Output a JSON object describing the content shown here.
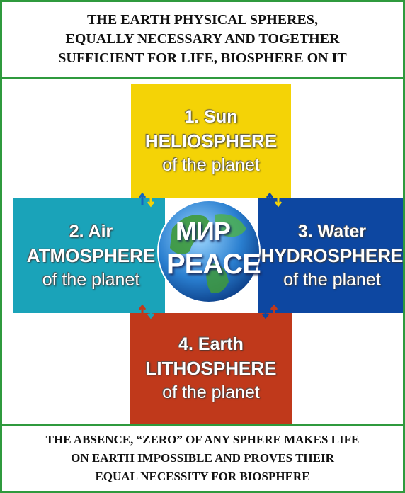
{
  "header": {
    "lines": [
      "THE EARTH PHYSICAL SPHERES,",
      "EQUALLY NECESSARY AND TOGETHER",
      "SUFFICIENT FOR LIFE, BIOSPHERE ON IT"
    ]
  },
  "spheres": [
    {
      "number": "1. Sun",
      "name": "HELIOSPHERE",
      "suffix": "of the planet"
    },
    {
      "number": "2. Air",
      "name": "ATMOSPHERE",
      "suffix": "of the planet"
    },
    {
      "number": "3. Water",
      "name": "HYDROSPHERE",
      "suffix": "of the planet"
    },
    {
      "number": "4. Earth",
      "name": "LITHOSPHERE",
      "suffix": "of the planet"
    }
  ],
  "globe": {
    "top": "МИР",
    "bottom": "PEACE"
  },
  "footer": {
    "lines": [
      "THE ABSENCE, “ZERO” OF ANY SPHERE MAKES LIFE",
      "ON EARTH IMPOSSIBLE AND PROVES THEIR",
      "EQUAL NECESSITY FOR BIOSPHERE"
    ]
  }
}
